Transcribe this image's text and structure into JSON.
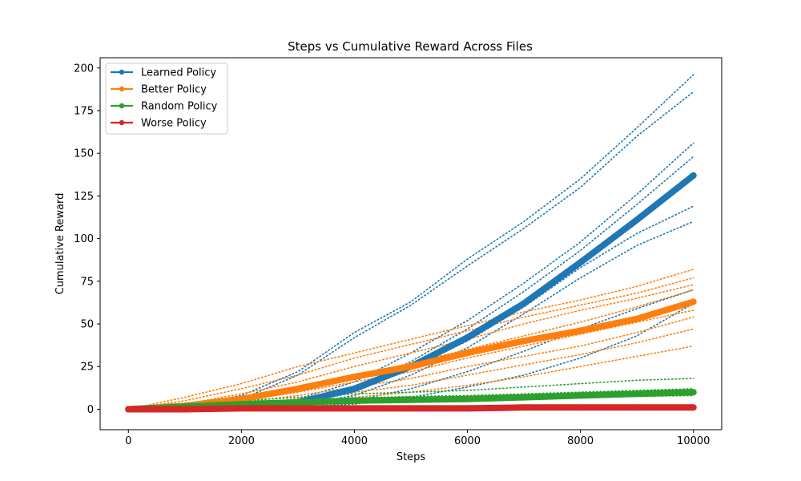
{
  "chart_data": {
    "type": "line",
    "title": "Steps vs Cumulative Reward Across Files",
    "xlabel": "Steps",
    "ylabel": "Cumulative Reward",
    "xlim": [
      -500,
      10500
    ],
    "ylim": [
      -12,
      206
    ],
    "xticks": [
      0,
      2000,
      4000,
      6000,
      8000,
      10000
    ],
    "yticks": [
      0,
      25,
      50,
      75,
      100,
      125,
      150,
      175,
      200
    ],
    "grid": false,
    "legend_position": "top-left",
    "series": [
      {
        "name": "Learned Policy",
        "color": "#1f77b4",
        "x": [
          0,
          1000,
          2000,
          3000,
          4000,
          5000,
          6000,
          7000,
          8000,
          9000,
          10000
        ],
        "y": [
          0,
          0.5,
          1.5,
          4,
          12,
          25,
          42,
          62,
          86,
          111,
          137
        ],
        "runs": [
          [
            [
              0,
              0
            ],
            [
              1000,
              2
            ],
            [
              2000,
              8
            ],
            [
              3000,
              22
            ],
            [
              4000,
              45
            ],
            [
              5000,
              63
            ],
            [
              6000,
              88
            ],
            [
              7000,
              110
            ],
            [
              8000,
              135
            ],
            [
              9000,
              165
            ],
            [
              10000,
              196
            ]
          ],
          [
            [
              0,
              0
            ],
            [
              1000,
              1.5
            ],
            [
              2000,
              6
            ],
            [
              3000,
              20
            ],
            [
              4000,
              42
            ],
            [
              5000,
              61
            ],
            [
              6000,
              84
            ],
            [
              7000,
              106
            ],
            [
              8000,
              130
            ],
            [
              9000,
              160
            ],
            [
              10000,
              186
            ]
          ],
          [
            [
              0,
              0
            ],
            [
              1000,
              0.5
            ],
            [
              2000,
              2
            ],
            [
              3000,
              6
            ],
            [
              4000,
              16
            ],
            [
              5000,
              33
            ],
            [
              6000,
              52
            ],
            [
              7000,
              74
            ],
            [
              8000,
              98
            ],
            [
              9000,
              126
            ],
            [
              10000,
              156
            ]
          ],
          [
            [
              0,
              0
            ],
            [
              1000,
              0.5
            ],
            [
              2000,
              1.5
            ],
            [
              3000,
              4
            ],
            [
              4000,
              12
            ],
            [
              5000,
              28
            ],
            [
              6000,
              47
            ],
            [
              7000,
              69
            ],
            [
              8000,
              93
            ],
            [
              9000,
              120
            ],
            [
              10000,
              148
            ]
          ],
          [
            [
              0,
              0
            ],
            [
              1000,
              0.5
            ],
            [
              2000,
              1.5
            ],
            [
              3000,
              3
            ],
            [
              4000,
              10
            ],
            [
              5000,
              24
            ],
            [
              6000,
              40
            ],
            [
              7000,
              60
            ],
            [
              8000,
              83
            ],
            [
              9000,
              103
            ],
            [
              10000,
              119
            ]
          ],
          [
            [
              0,
              0
            ],
            [
              1000,
              0.5
            ],
            [
              2000,
              1
            ],
            [
              3000,
              2.5
            ],
            [
              4000,
              8
            ],
            [
              5000,
              20
            ],
            [
              6000,
              36
            ],
            [
              7000,
              56
            ],
            [
              8000,
              77
            ],
            [
              9000,
              96
            ],
            [
              10000,
              110
            ]
          ],
          [
            [
              0,
              0
            ],
            [
              1000,
              0.5
            ],
            [
              2000,
              1
            ],
            [
              3000,
              2
            ],
            [
              4000,
              5
            ],
            [
              5000,
              12
            ],
            [
              6000,
              22
            ],
            [
              7000,
              34
            ],
            [
              8000,
              47
            ],
            [
              9000,
              59
            ],
            [
              10000,
              70
            ]
          ],
          [
            [
              0,
              0
            ],
            [
              1000,
              0.5
            ],
            [
              2000,
              1
            ],
            [
              3000,
              1.5
            ],
            [
              4000,
              3
            ],
            [
              5000,
              7
            ],
            [
              6000,
              13
            ],
            [
              7000,
              20
            ],
            [
              8000,
              30
            ],
            [
              9000,
              43
            ],
            [
              10000,
              62
            ]
          ]
        ]
      },
      {
        "name": "Better Policy",
        "color": "#ff7f0e",
        "x": [
          0,
          1000,
          2000,
          3000,
          4000,
          5000,
          6000,
          7000,
          8000,
          9000,
          10000
        ],
        "y": [
          0,
          2,
          6,
          12,
          19,
          25,
          33,
          40,
          46,
          53,
          63
        ],
        "runs": [
          [
            [
              0,
              0
            ],
            [
              1000,
              7
            ],
            [
              2000,
              15
            ],
            [
              3000,
              25
            ],
            [
              4000,
              33
            ],
            [
              5000,
              41
            ],
            [
              6000,
              49
            ],
            [
              7000,
              57
            ],
            [
              8000,
              64
            ],
            [
              9000,
              72
            ],
            [
              10000,
              82
            ]
          ],
          [
            [
              0,
              0
            ],
            [
              1000,
              5
            ],
            [
              2000,
              12
            ],
            [
              3000,
              20
            ],
            [
              4000,
              30
            ],
            [
              5000,
              38
            ],
            [
              6000,
              46
            ],
            [
              7000,
              54
            ],
            [
              8000,
              61
            ],
            [
              9000,
              68
            ],
            [
              10000,
              77
            ]
          ],
          [
            [
              0,
              0
            ],
            [
              1000,
              3
            ],
            [
              2000,
              9
            ],
            [
              3000,
              16
            ],
            [
              4000,
              25
            ],
            [
              5000,
              33
            ],
            [
              6000,
              41
            ],
            [
              7000,
              50
            ],
            [
              8000,
              58
            ],
            [
              9000,
              65
            ],
            [
              10000,
              73
            ]
          ],
          [
            [
              0,
              0
            ],
            [
              1000,
              2
            ],
            [
              2000,
              7
            ],
            [
              3000,
              13
            ],
            [
              4000,
              20
            ],
            [
              5000,
              27
            ],
            [
              6000,
              35
            ],
            [
              7000,
              43
            ],
            [
              8000,
              51
            ],
            [
              9000,
              60
            ],
            [
              10000,
              70
            ]
          ],
          [
            [
              0,
              0
            ],
            [
              1000,
              1.5
            ],
            [
              2000,
              5
            ],
            [
              3000,
              10
            ],
            [
              4000,
              16
            ],
            [
              5000,
              22
            ],
            [
              6000,
              30
            ],
            [
              7000,
              37
            ],
            [
              8000,
              44
            ],
            [
              9000,
              51
            ],
            [
              10000,
              58
            ]
          ],
          [
            [
              0,
              0
            ],
            [
              1000,
              1
            ],
            [
              2000,
              4
            ],
            [
              3000,
              8
            ],
            [
              4000,
              13
            ],
            [
              5000,
              18
            ],
            [
              6000,
              25
            ],
            [
              7000,
              31
            ],
            [
              8000,
              37
            ],
            [
              9000,
              45
            ],
            [
              10000,
              54
            ]
          ],
          [
            [
              0,
              0
            ],
            [
              1000,
              1
            ],
            [
              2000,
              3
            ],
            [
              3000,
              6
            ],
            [
              4000,
              10
            ],
            [
              5000,
              14
            ],
            [
              6000,
              20
            ],
            [
              7000,
              26
            ],
            [
              8000,
              32
            ],
            [
              9000,
              39
            ],
            [
              10000,
              47
            ]
          ],
          [
            [
              0,
              0
            ],
            [
              1000,
              0.5
            ],
            [
              2000,
              2
            ],
            [
              3000,
              4
            ],
            [
              4000,
              7
            ],
            [
              5000,
              10
            ],
            [
              6000,
              14
            ],
            [
              7000,
              19
            ],
            [
              8000,
              25
            ],
            [
              9000,
              31
            ],
            [
              10000,
              37
            ]
          ]
        ]
      },
      {
        "name": "Random Policy",
        "color": "#2ca02c",
        "x": [
          0,
          1000,
          2000,
          3000,
          4000,
          5000,
          6000,
          7000,
          8000,
          9000,
          10000
        ],
        "y": [
          0,
          1.5,
          3,
          4,
          5,
          5.5,
          6,
          7,
          8,
          9,
          10
        ],
        "runs": [
          [
            [
              0,
              0
            ],
            [
              1000,
              2.5
            ],
            [
              2000,
              5
            ],
            [
              3000,
              7
            ],
            [
              4000,
              9
            ],
            [
              5000,
              10
            ],
            [
              6000,
              11
            ],
            [
              7000,
              13
            ],
            [
              8000,
              15
            ],
            [
              9000,
              17
            ],
            [
              10000,
              18
            ]
          ],
          [
            [
              0,
              0
            ],
            [
              1000,
              2
            ],
            [
              2000,
              4
            ],
            [
              3000,
              5
            ],
            [
              4000,
              6.5
            ],
            [
              5000,
              7.5
            ],
            [
              6000,
              8
            ],
            [
              7000,
              9
            ],
            [
              8000,
              10
            ],
            [
              9000,
              11
            ],
            [
              10000,
              12
            ]
          ],
          [
            [
              0,
              0
            ],
            [
              1000,
              1.5
            ],
            [
              2000,
              3
            ],
            [
              3000,
              4
            ],
            [
              4000,
              5
            ],
            [
              5000,
              5.5
            ],
            [
              6000,
              6
            ],
            [
              7000,
              7
            ],
            [
              8000,
              8
            ],
            [
              9000,
              9
            ],
            [
              10000,
              10
            ]
          ],
          [
            [
              0,
              0
            ],
            [
              1000,
              1
            ],
            [
              2000,
              2
            ],
            [
              3000,
              3
            ],
            [
              4000,
              4
            ],
            [
              5000,
              4.5
            ],
            [
              6000,
              5
            ],
            [
              7000,
              6
            ],
            [
              8000,
              7
            ],
            [
              9000,
              7.5
            ],
            [
              10000,
              8
            ]
          ]
        ]
      },
      {
        "name": "Worse Policy",
        "color": "#d62728",
        "x": [
          0,
          1000,
          2000,
          3000,
          4000,
          5000,
          6000,
          7000,
          8000,
          9000,
          10000
        ],
        "y": [
          0,
          0,
          0.5,
          0.5,
          0.5,
          0.5,
          0.5,
          1,
          1,
          1,
          1
        ],
        "runs": []
      }
    ]
  }
}
